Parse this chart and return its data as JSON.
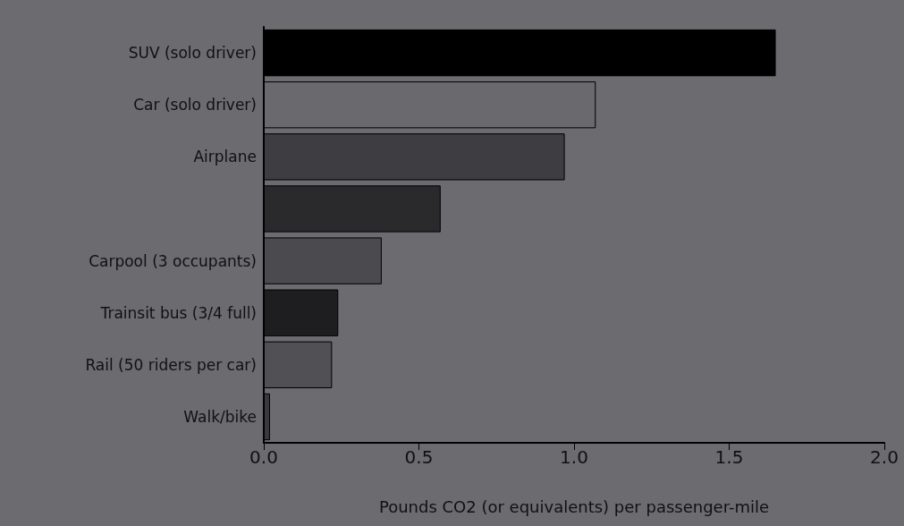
{
  "chart_data": {
    "type": "bar",
    "orientation": "horizontal",
    "categories": [
      "SUV (solo driver)",
      "Car (solo driver)",
      "Airplane",
      null,
      "Carpool (3 occupants)",
      "Trainsit bus (3/4 full)",
      "Rail (50 riders per car)",
      "Walk/bike"
    ],
    "values": [
      1.65,
      1.07,
      0.97,
      0.57,
      0.38,
      0.24,
      0.22,
      0.02
    ],
    "colors": [
      "#000000",
      "#6a6a6e",
      "#3d3d42",
      "#2a2a2d",
      "#4a4a4f",
      "#1e1e20",
      "#505055",
      "#3a3a3e"
    ],
    "xlabel": "Pounds CO2 (or equivalents) per passenger-mile",
    "xlim": [
      0,
      2
    ],
    "xticks": [
      {
        "value": 0,
        "label": "0.0"
      },
      {
        "value": 0.5,
        "label": "0.5"
      },
      {
        "value": 1,
        "label": "1.0"
      },
      {
        "value": 1.5,
        "label": "1.5"
      },
      {
        "value": 2,
        "label": "2.0"
      }
    ],
    "grid": false
  }
}
